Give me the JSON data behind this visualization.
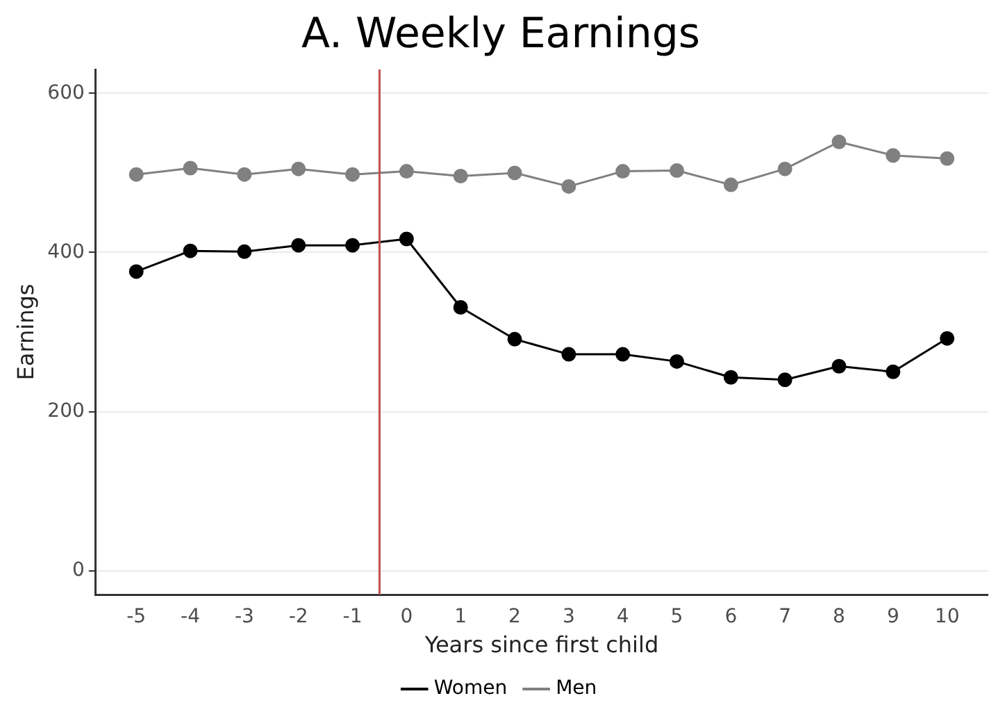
{
  "chart_data": {
    "type": "line",
    "title": "A. Weekly Earnings",
    "xlabel": "Years since first child",
    "ylabel": "Earnings",
    "x": [
      -5,
      -4,
      -3,
      -2,
      -1,
      0,
      1,
      2,
      3,
      4,
      5,
      6,
      7,
      8,
      9,
      10
    ],
    "xlim": [
      -5.75,
      10.75
    ],
    "xticks": [
      -5,
      -4,
      -3,
      -2,
      -1,
      0,
      1,
      2,
      3,
      4,
      5,
      6,
      7,
      8,
      9,
      10
    ],
    "ylim": [
      -30,
      630
    ],
    "yticks": [
      0,
      200,
      400,
      600
    ],
    "series": [
      {
        "name": "Women",
        "color": "#000000",
        "values": [
          376,
          402,
          401,
          409,
          409,
          417,
          331,
          291,
          272,
          272,
          263,
          243,
          240,
          257,
          250,
          292
        ]
      },
      {
        "name": "Men",
        "color": "#808080",
        "values": [
          498,
          506,
          498,
          505,
          498,
          502,
          496,
          500,
          483,
          502,
          503,
          485,
          505,
          539,
          522,
          518
        ]
      }
    ],
    "ref_lines": [
      {
        "axis": "x",
        "value": -0.5,
        "color": "#c0504d"
      }
    ],
    "grid": "y",
    "legend": "bottom",
    "marker": "circle",
    "line_style": "solid"
  }
}
